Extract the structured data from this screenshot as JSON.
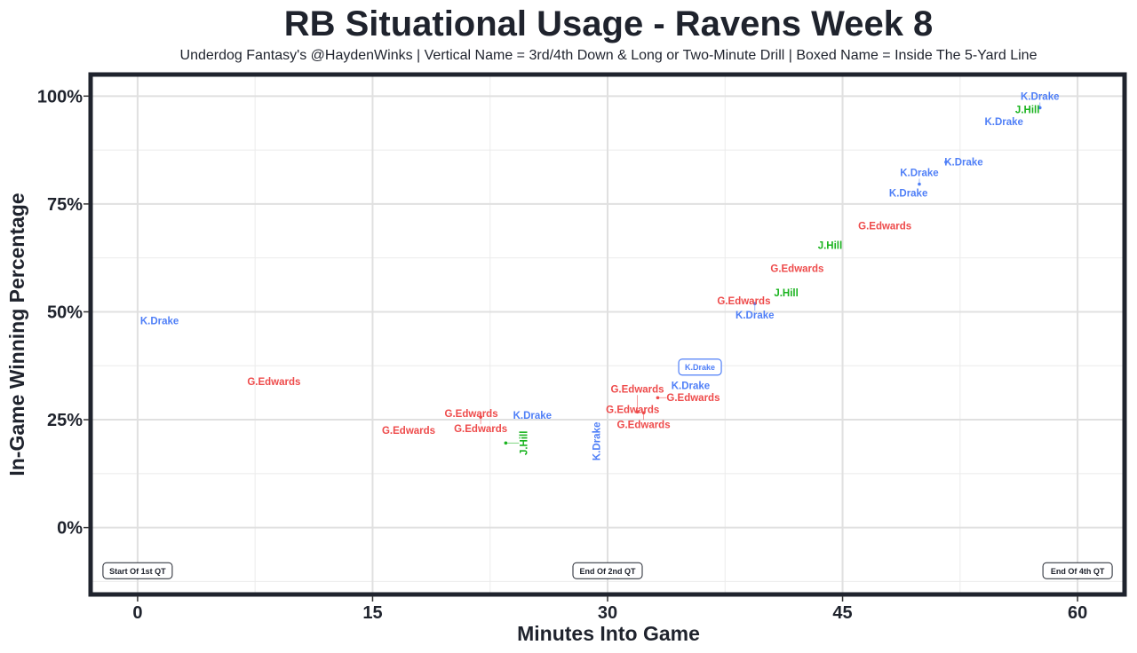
{
  "chart_data": {
    "type": "scatter",
    "title": "RB Situational Usage - Ravens Week 8",
    "subtitle": "Underdog Fantasy's @HaydenWinks | Vertical Name = 3rd/4th Down & Long or Two-Minute Drill | Boxed Name = Inside The 5-Yard Line",
    "xlabel": "Minutes Into Game",
    "ylabel": "In-Game Winning Percentage",
    "xlim": [
      -3,
      63
    ],
    "ylim": [
      -15.5,
      105
    ],
    "xticks": [
      0,
      15,
      30,
      45,
      60
    ],
    "xtick_labels": [
      "0",
      "15",
      "30",
      "45",
      "60"
    ],
    "yticks": [
      0,
      25,
      50,
      75,
      100
    ],
    "ytick_labels": [
      "0%",
      "25%",
      "50%",
      "75%",
      "100%"
    ],
    "grid": true,
    "colors": {
      "K.Drake": "#4f7ff7",
      "G.Edwards": "#ee4b4b",
      "J.Hill": "#19b31e",
      "frame": "#1f232d"
    },
    "points": [
      {
        "name": "K.Drake",
        "x": 1.4,
        "y": 47.9,
        "style": "normal"
      },
      {
        "name": "G.Edwards",
        "x": 8.7,
        "y": 33.9,
        "style": "normal"
      },
      {
        "name": "G.Edwards",
        "x": 17.3,
        "y": 22.5,
        "style": "normal"
      },
      {
        "name": "G.Edwards",
        "x": 21.3,
        "y": 26.4,
        "style": "normal"
      },
      {
        "name": "G.Edwards",
        "x": 21.9,
        "y": 25.6,
        "style": "normal"
      },
      {
        "name": "J.Hill",
        "x": 23.5,
        "y": 19.6,
        "style": "vertical"
      },
      {
        "name": "K.Drake",
        "x": 25.2,
        "y": 26.0,
        "style": "normal"
      },
      {
        "name": "K.Drake",
        "x": 29.3,
        "y": 20.0,
        "style": "vertical"
      },
      {
        "name": "G.Edwards",
        "x": 31.6,
        "y": 27.4,
        "style": "normal"
      },
      {
        "name": "G.Edwards",
        "x": 32.3,
        "y": 26.6,
        "style": "normal"
      },
      {
        "name": "G.Edwards",
        "x": 31.9,
        "y": 26.8,
        "style": "normal"
      },
      {
        "name": "G.Edwards",
        "x": 33.2,
        "y": 30.1,
        "style": "normal"
      },
      {
        "name": "K.Drake",
        "x": 35.3,
        "y": 32.9,
        "style": "normal"
      },
      {
        "name": "K.Drake",
        "x": 35.9,
        "y": 37.2,
        "style": "boxed"
      },
      {
        "name": "G.Edwards",
        "x": 38.7,
        "y": 52.6,
        "style": "normal"
      },
      {
        "name": "K.Drake",
        "x": 39.4,
        "y": 51.9,
        "style": "normal"
      },
      {
        "name": "J.Hill",
        "x": 41.4,
        "y": 54.4,
        "style": "normal"
      },
      {
        "name": "G.Edwards",
        "x": 42.1,
        "y": 60.1,
        "style": "normal"
      },
      {
        "name": "J.Hill",
        "x": 44.2,
        "y": 65.4,
        "style": "normal"
      },
      {
        "name": "G.Edwards",
        "x": 47.7,
        "y": 69.9,
        "style": "normal"
      },
      {
        "name": "K.Drake",
        "x": 49.2,
        "y": 77.5,
        "style": "normal"
      },
      {
        "name": "K.Drake",
        "x": 49.9,
        "y": 79.6,
        "style": "normal"
      },
      {
        "name": "K.Drake",
        "x": 51.6,
        "y": 84.7,
        "style": "normal"
      },
      {
        "name": "K.Drake",
        "x": 55.3,
        "y": 94.1,
        "style": "normal"
      },
      {
        "name": "J.Hill",
        "x": 56.8,
        "y": 96.9,
        "style": "normal"
      },
      {
        "name": "K.Drake",
        "x": 57.6,
        "y": 97.3,
        "style": "normal"
      }
    ],
    "annotations": [
      {
        "text": "Start Of 1st QT",
        "x": 0,
        "y": -10
      },
      {
        "text": "End Of 2nd QT",
        "x": 30,
        "y": -10
      },
      {
        "text": "End Of 4th QT",
        "x": 60,
        "y": -10
      }
    ]
  }
}
